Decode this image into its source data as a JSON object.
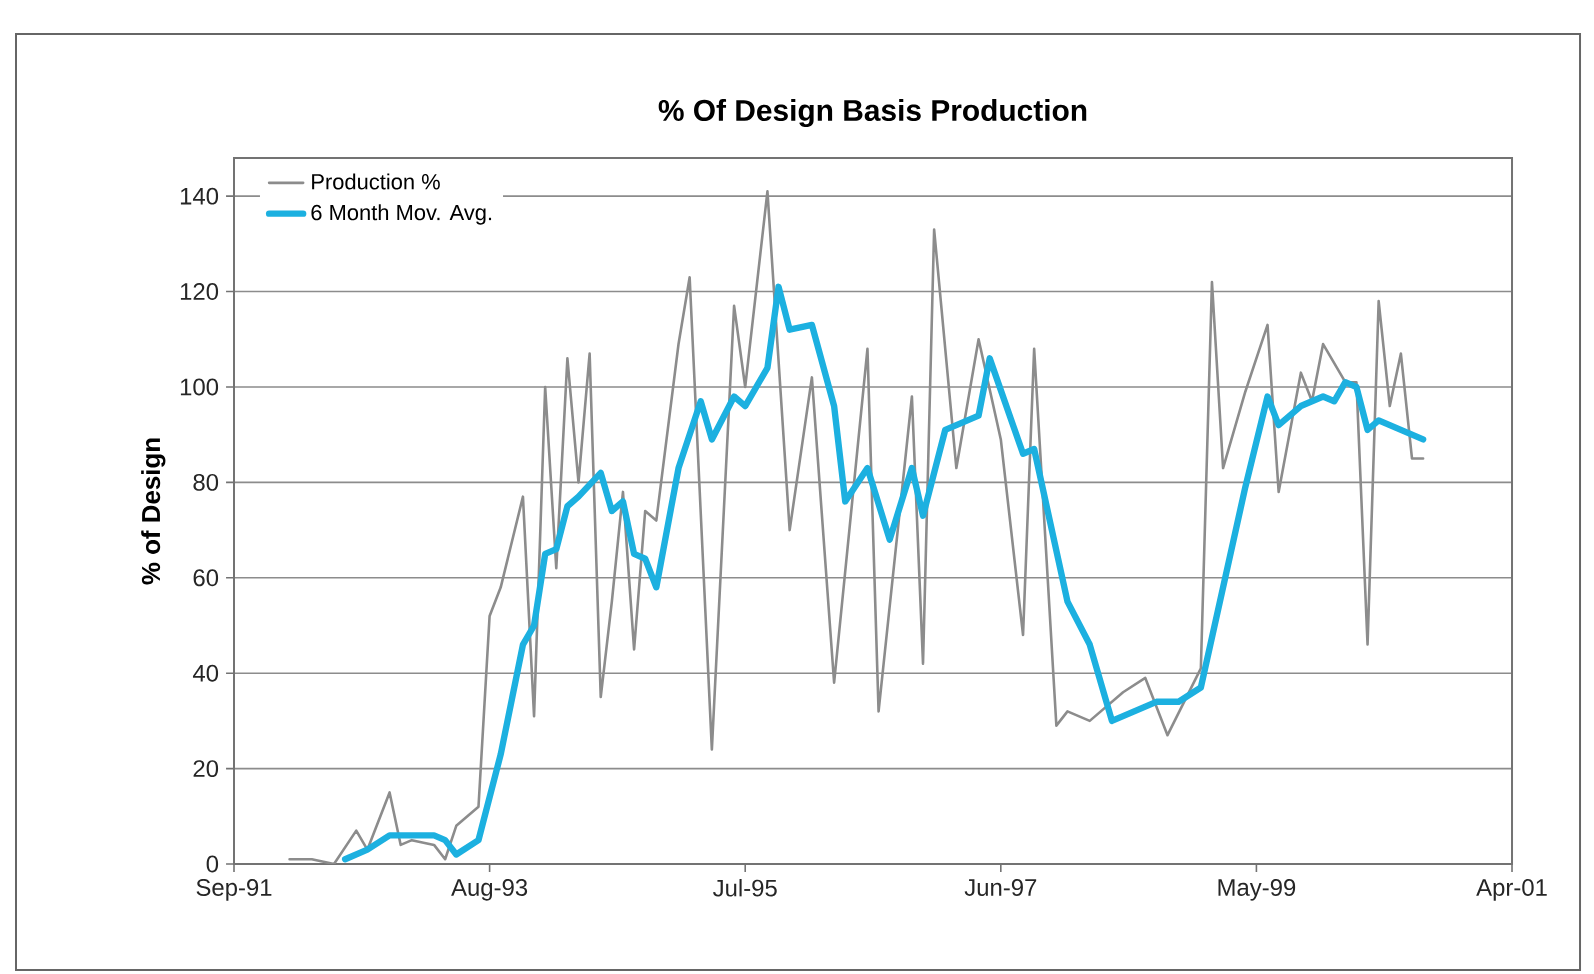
{
  "chart_data": {
    "type": "line",
    "title": "% Of Design Basis Production",
    "ylabel": "% of Design",
    "xlim": [
      "1991-09",
      "2001-04"
    ],
    "xticks": [
      {
        "value": "1991-09",
        "label": "Sep-91"
      },
      {
        "value": "1993-08",
        "label": "Aug-93"
      },
      {
        "value": "1995-07",
        "label": "Jul-95"
      },
      {
        "value": "1997-06",
        "label": "Jun-97"
      },
      {
        "value": "1999-05",
        "label": "May-99"
      },
      {
        "value": "2001-04",
        "label": "Apr-01"
      }
    ],
    "ylim": [
      0,
      148
    ],
    "yticks": [
      0,
      20,
      40,
      60,
      80,
      100,
      120,
      140
    ],
    "grid": "y",
    "legend": "top left",
    "series": [
      {
        "name": "Production %",
        "color": "#8c8c8c",
        "x": [
          "1992-02",
          "1992-04",
          "1992-06",
          "1992-08",
          "1992-09",
          "1992-11",
          "1992-12",
          "1993-01",
          "1993-03",
          "1993-04",
          "1993-05",
          "1993-07",
          "1993-08",
          "1993-09",
          "1993-11",
          "1993-12",
          "1994-01",
          "1994-02",
          "1994-03",
          "1994-04",
          "1994-05",
          "1994-06",
          "1994-07",
          "1994-08",
          "1994-09",
          "1994-10",
          "1994-11",
          "1995-01",
          "1995-02",
          "1995-04",
          "1995-06",
          "1995-07",
          "1995-09",
          "1995-11",
          "1996-01",
          "1996-03",
          "1996-06",
          "1996-07",
          "1996-10",
          "1996-11",
          "1996-12",
          "1997-02",
          "1997-04",
          "1997-06",
          "1997-08",
          "1997-09",
          "1997-11",
          "1997-12",
          "1998-02",
          "1998-05",
          "1998-07",
          "1998-09",
          "1998-12",
          "1999-01",
          "1999-02",
          "1999-04",
          "1999-06",
          "1999-07",
          "1999-09",
          "1999-10",
          "1999-11",
          "2000-01",
          "2000-02",
          "2000-03",
          "2000-04",
          "2000-05",
          "2000-06",
          "2000-07",
          "2000-08"
        ],
        "values": [
          1,
          1,
          0,
          7,
          3,
          15,
          4,
          5,
          4,
          1,
          8,
          12,
          52,
          58,
          77,
          31,
          100,
          62,
          106,
          80,
          107,
          35,
          55,
          78,
          45,
          74,
          72,
          109,
          123,
          24,
          117,
          100,
          141,
          70,
          102,
          38,
          108,
          32,
          98,
          42,
          133,
          83,
          110,
          89,
          48,
          108,
          29,
          32,
          30,
          36,
          39,
          27,
          41,
          122,
          83,
          99,
          113,
          78,
          103,
          97,
          109,
          101,
          101,
          46,
          118,
          96,
          107,
          85,
          85
        ]
      },
      {
        "name": "6 Month Mov. Avg.",
        "color": "#1cb0e0",
        "x": [
          "1992-07",
          "1992-09",
          "1992-11",
          "1993-03",
          "1993-04",
          "1993-05",
          "1993-07",
          "1993-09",
          "1993-11",
          "1993-12",
          "1994-01",
          "1994-02",
          "1994-03",
          "1994-04",
          "1994-06",
          "1994-07",
          "1994-08",
          "1994-09",
          "1994-10",
          "1994-11",
          "1995-01",
          "1995-03",
          "1995-04",
          "1995-06",
          "1995-07",
          "1995-09",
          "1995-10",
          "1995-11",
          "1996-01",
          "1996-03",
          "1996-04",
          "1996-06",
          "1996-08",
          "1996-10",
          "1996-11",
          "1997-01",
          "1997-04",
          "1997-05",
          "1997-08",
          "1997-09",
          "1997-12",
          "1998-02",
          "1998-04",
          "1998-06",
          "1998-08",
          "1998-10",
          "1998-12",
          "1999-02",
          "1999-04",
          "1999-06",
          "1999-07",
          "1999-09",
          "1999-11",
          "1999-12",
          "2000-01",
          "2000-02",
          "2000-03",
          "2000-04",
          "2000-05",
          "2000-06",
          "2000-07",
          "2000-08"
        ],
        "values": [
          1,
          3,
          6,
          6,
          5,
          2,
          5,
          23,
          46,
          50,
          65,
          66,
          75,
          77,
          82,
          74,
          76,
          65,
          64,
          58,
          83,
          97,
          89,
          98,
          96,
          104,
          121,
          112,
          113,
          96,
          76,
          83,
          68,
          83,
          73,
          91,
          94,
          106,
          86,
          87,
          55,
          46,
          30,
          32,
          34,
          34,
          37,
          58,
          79,
          98,
          92,
          96,
          98,
          97,
          101,
          100,
          91,
          93,
          92,
          91,
          90,
          89
        ]
      }
    ]
  }
}
